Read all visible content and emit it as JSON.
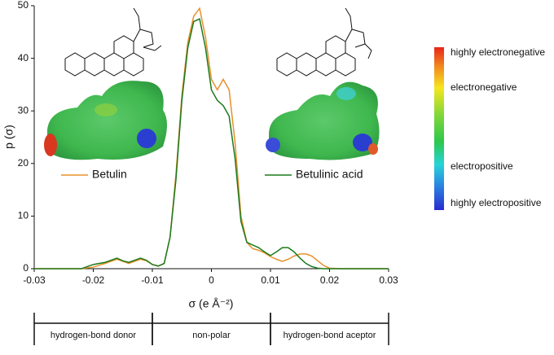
{
  "chart_data": {
    "type": "line",
    "x": [
      -0.03,
      -0.022,
      -0.02,
      -0.018,
      -0.016,
      -0.015,
      -0.014,
      -0.012,
      -0.011,
      -0.01,
      -0.009,
      -0.008,
      -0.007,
      -0.006,
      -0.005,
      -0.004,
      -0.003,
      -0.002,
      -0.001,
      0,
      0.001,
      0.002,
      0.003,
      0.004,
      0.005,
      0.006,
      0.007,
      0.008,
      0.009,
      0.01,
      0.011,
      0.012,
      0.013,
      0.014,
      0.015,
      0.016,
      0.017,
      0.018,
      0.019,
      0.02,
      0.022,
      0.03
    ],
    "series": [
      {
        "name": "Betulin",
        "color": "#e8902a",
        "values": [
          0,
          0,
          0.3,
          1,
          1.8,
          1.4,
          1,
          1.8,
          1.5,
          0.8,
          0.5,
          1,
          6,
          18,
          33,
          43,
          48,
          49.5,
          44,
          36,
          34,
          36,
          34,
          24,
          10,
          5,
          3.8,
          3.5,
          3,
          2.3,
          1.8,
          1.4,
          1.8,
          2.4,
          2.8,
          2.8,
          2.4,
          1.5,
          0.6,
          0.1,
          0,
          0
        ]
      },
      {
        "name": "Betulinic acid",
        "color": "#1c7a1c",
        "values": [
          0,
          0,
          0.8,
          1.2,
          2,
          1.5,
          1.2,
          2,
          1.6,
          0.8,
          0.5,
          1,
          6,
          17,
          32,
          42,
          47,
          47.5,
          42,
          34,
          32,
          31,
          29,
          21,
          9,
          5,
          4.5,
          4,
          3.2,
          2.5,
          3.2,
          4,
          4,
          3.2,
          2,
          1,
          0.4,
          0.1,
          0,
          0,
          0,
          0
        ]
      }
    ],
    "xlim": [
      -0.03,
      0.03
    ],
    "xticks": [
      -0.03,
      -0.02,
      -0.01,
      0,
      0.01,
      0.02,
      0.03
    ],
    "ylim": [
      0,
      50
    ],
    "yticks": [
      0,
      10,
      20,
      30,
      40,
      50
    ],
    "xlabel": "σ (e Å⁻²)",
    "ylabel": "p (σ)",
    "colorbar": [
      "highly electronegative",
      "electronegative",
      "electropositive",
      "highly electropositive"
    ],
    "regions": [
      {
        "label": "hydrogen-bond donor",
        "start": -0.03,
        "end": -0.01
      },
      {
        "label": "non-polar",
        "start": -0.01,
        "end": 0.01
      },
      {
        "label": "hydrogen-bond aceptor",
        "start": 0.01,
        "end": 0.03
      }
    ]
  }
}
